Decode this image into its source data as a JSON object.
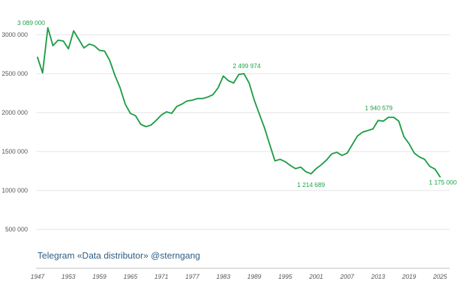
{
  "watermark": "Telegram «Data distributor» @sterngang",
  "colors": {
    "line": "#1f9e47",
    "grid": "#e3e3e3",
    "watermark": "#2f5e86"
  },
  "chart_data": {
    "type": "line",
    "title": "",
    "xlabel": "",
    "ylabel": "",
    "xlim": [
      1947,
      2025
    ],
    "ylim": [
      0,
      3200000
    ],
    "grid": "horizontal",
    "y_ticks": [
      500000,
      1000000,
      1500000,
      2000000,
      2500000,
      3000000
    ],
    "y_tick_labels": [
      "500 000",
      "1000 000",
      "1500 000",
      "2000 000",
      "2500 000",
      "3000 000"
    ],
    "x_ticks": [
      1947,
      1953,
      1959,
      1965,
      1971,
      1977,
      1983,
      1989,
      1995,
      2001,
      2007,
      2013,
      2019,
      2025
    ],
    "x_tick_labels": [
      "1947",
      "1953",
      "1959",
      "1965",
      "1971",
      "1977",
      "1983",
      "1989",
      "1995",
      "2001",
      "2007",
      "2013",
      "2019",
      "2025"
    ],
    "series": [
      {
        "color": "#1f9e47",
        "x": [
          1947,
          1948,
          1949,
          1950,
          1951,
          1952,
          1953,
          1954,
          1955,
          1956,
          1957,
          1958,
          1959,
          1960,
          1961,
          1962,
          1963,
          1964,
          1965,
          1966,
          1967,
          1968,
          1969,
          1970,
          1971,
          1972,
          1973,
          1974,
          1975,
          1976,
          1977,
          1978,
          1979,
          1980,
          1981,
          1982,
          1983,
          1984,
          1985,
          1986,
          1987,
          1988,
          1989,
          1990,
          1991,
          1992,
          1993,
          1994,
          1995,
          1996,
          1997,
          1998,
          1999,
          2000,
          2001,
          2002,
          2003,
          2004,
          2005,
          2006,
          2007,
          2008,
          2009,
          2010,
          2011,
          2012,
          2013,
          2014,
          2015,
          2016,
          2017,
          2018,
          2019,
          2020,
          2021,
          2022,
          2023,
          2024,
          2025
        ],
        "y": [
          2710000,
          2510000,
          3089000,
          2860000,
          2930000,
          2920000,
          2820000,
          3050000,
          2940000,
          2830000,
          2880000,
          2860000,
          2800000,
          2790000,
          2670000,
          2480000,
          2320000,
          2110000,
          1990000,
          1960000,
          1850000,
          1820000,
          1840000,
          1900000,
          1970000,
          2010000,
          1990000,
          2080000,
          2110000,
          2150000,
          2160000,
          2180000,
          2180000,
          2200000,
          2230000,
          2320000,
          2470000,
          2410000,
          2380000,
          2490000,
          2499974,
          2380000,
          2160000,
          1980000,
          1800000,
          1590000,
          1380000,
          1400000,
          1370000,
          1320000,
          1280000,
          1300000,
          1240000,
          1214689,
          1280000,
          1330000,
          1390000,
          1470000,
          1490000,
          1450000,
          1480000,
          1590000,
          1700000,
          1750000,
          1770000,
          1790000,
          1900000,
          1890000,
          1940579,
          1940000,
          1890000,
          1690000,
          1600000,
          1480000,
          1430000,
          1400000,
          1310000,
          1275000,
          1175000
        ]
      }
    ],
    "annotations": [
      {
        "x": 1949,
        "y": 3089000,
        "text": "3 089 000"
      },
      {
        "x": 1987,
        "y": 2499974,
        "text": "2 499 974"
      },
      {
        "x": 2000,
        "y": 1214689,
        "text": "1 214 689"
      },
      {
        "x": 2015,
        "y": 1940579,
        "text": "1 940 579"
      },
      {
        "x": 2025,
        "y": 1175000,
        "text": "1 175 000"
      }
    ]
  }
}
